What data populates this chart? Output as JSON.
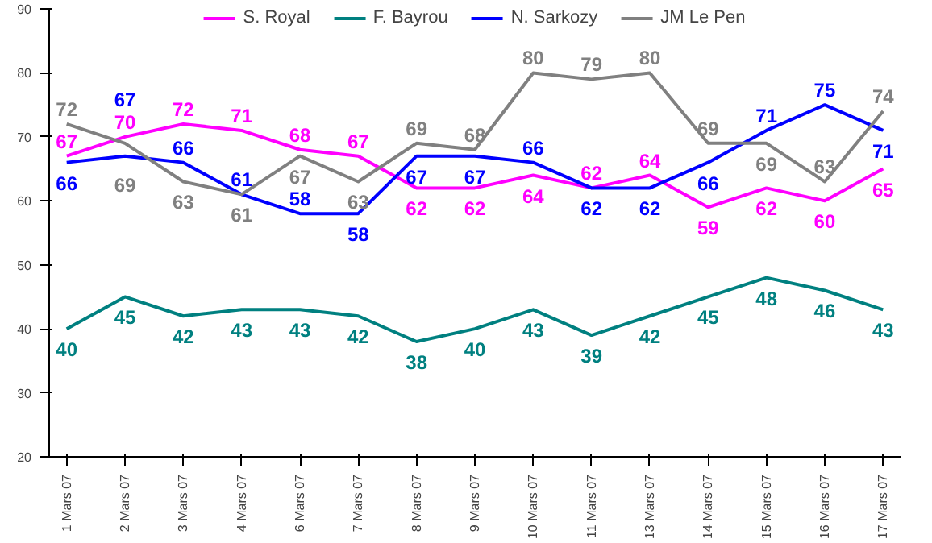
{
  "chart_data": {
    "type": "line",
    "categories": [
      "1 Mars 07",
      "2 Mars 07",
      "3 Mars 07",
      "4 Mars 07",
      "6 Mars 07",
      "7 Mars 07",
      "8 Mars 07",
      "9 Mars 07",
      "10 Mars 07",
      "11 Mars 07",
      "13 Mars 07",
      "14 Mars 07",
      "15 Mars 07",
      "16 Mars 07",
      "17 Mars 07"
    ],
    "series": [
      {
        "name": "S. Royal",
        "color": "#ff00ff",
        "values": [
          67,
          70,
          72,
          71,
          68,
          67,
          62,
          62,
          64,
          62,
          64,
          59,
          62,
          60,
          65
        ]
      },
      {
        "name": "F. Bayrou",
        "color": "#008080",
        "values": [
          40,
          45,
          42,
          43,
          43,
          42,
          38,
          40,
          43,
          39,
          42,
          45,
          48,
          46,
          43
        ]
      },
      {
        "name": "N. Sarkozy",
        "color": "#0000ff",
        "values": [
          66,
          67,
          66,
          61,
          58,
          58,
          67,
          67,
          66,
          62,
          62,
          66,
          71,
          75,
          71
        ]
      },
      {
        "name": "JM Le Pen",
        "color": "#808080",
        "values": [
          72,
          69,
          63,
          61,
          67,
          63,
          69,
          68,
          80,
          79,
          80,
          69,
          69,
          63,
          74
        ]
      }
    ],
    "ylim": [
      20,
      90
    ],
    "yticks": [
      20,
      30,
      40,
      50,
      60,
      70,
      80,
      90
    ],
    "grid": false,
    "legend": "top",
    "data_labels": true,
    "marker": "none",
    "line_style": "solid"
  }
}
